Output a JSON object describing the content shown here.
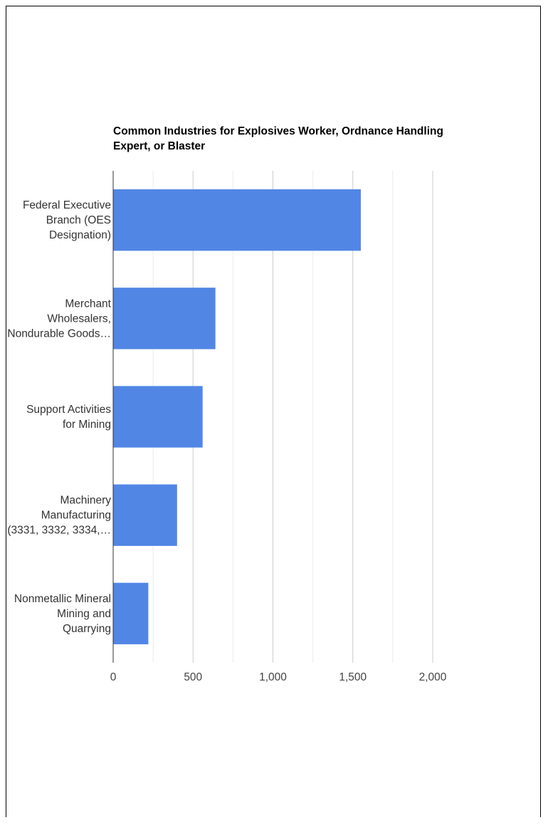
{
  "colors": {
    "bar": "#5186e5",
    "grid_major": "#cccccc",
    "grid_minor": "#ebebeb",
    "axis": "#333333"
  },
  "chart_data": {
    "type": "bar",
    "orientation": "horizontal",
    "title_lines": [
      "Common Industries for Explosives Worker, Ordnance Handling",
      "Expert, or Blaster"
    ],
    "categories": [
      [
        "Federal Executive",
        "Branch (OES",
        "Designation)"
      ],
      [
        "Merchant",
        "Wholesalers,",
        "Nondurable Goods…"
      ],
      [
        "Support Activities",
        "for Mining"
      ],
      [
        "Machinery",
        "Manufacturing",
        "(3331, 3332, 3334,…"
      ],
      [
        "Nonmetallic Mineral",
        "Mining and",
        "Quarrying"
      ]
    ],
    "values": [
      1550,
      640,
      560,
      400,
      220
    ],
    "xlim": [
      0,
      2000
    ],
    "xticks": [
      0,
      500,
      1000,
      1500,
      2000
    ],
    "xtick_labels": [
      "0",
      "500",
      "1,000",
      "1,500",
      "2,000"
    ],
    "grid": true,
    "legend": "none"
  }
}
